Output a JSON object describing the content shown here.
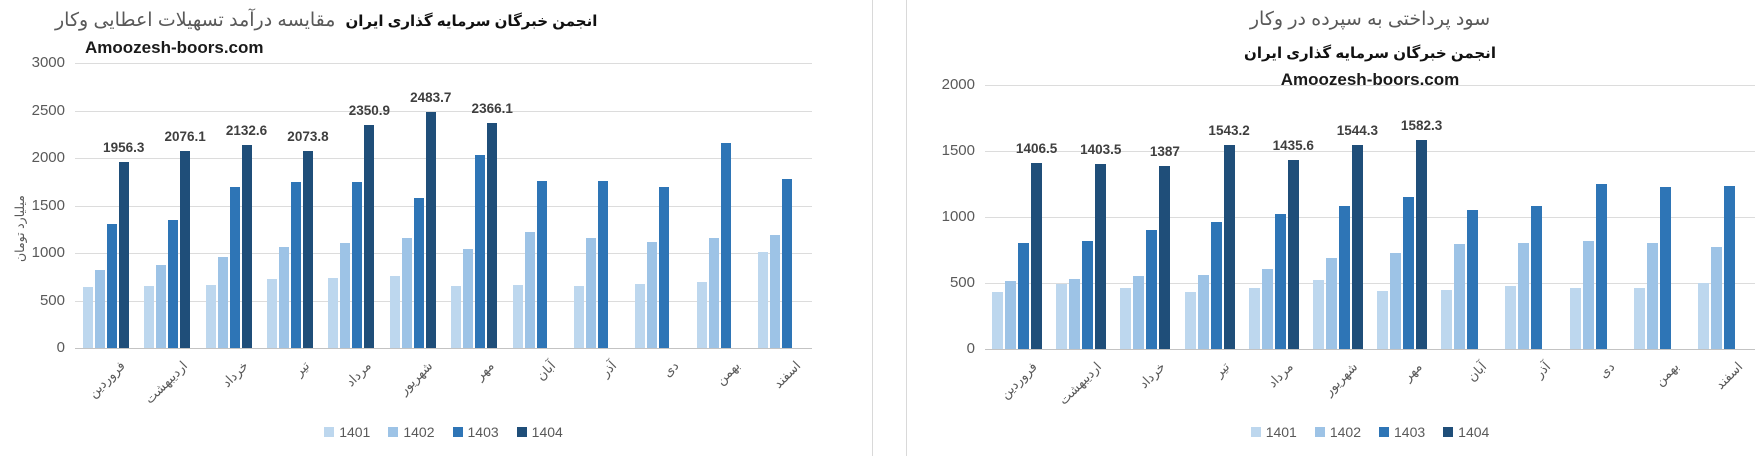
{
  "page": {
    "background": "#ffffff"
  },
  "chart_data": [
    {
      "type": "bar",
      "title_main": "مقایسه درآمد تسهیلات اعطایی وکار",
      "title_bold": "انجمن خبرگان سرمایه گذاری ایران",
      "watermark": "Amoozesh-boors.com",
      "ylabel": "میلیارد تومان",
      "xlabel": "",
      "categories": [
        "فروردین",
        "اردیبهشت",
        "خرداد",
        "تیر",
        "مرداد",
        "شهریور",
        "مهر",
        "آبان",
        "آذر",
        "دی",
        "بهمن",
        "اسفند"
      ],
      "series": [
        {
          "name": "1401",
          "color": "#bdd7ee",
          "values": [
            640,
            650,
            660,
            730,
            740,
            760,
            650,
            660,
            650,
            670,
            700,
            1010
          ]
        },
        {
          "name": "1402",
          "color": "#9dc3e6",
          "values": [
            825,
            870,
            960,
            1060,
            1110,
            1160,
            1040,
            1220,
            1160,
            1115,
            1160,
            1185
          ]
        },
        {
          "name": "1403",
          "color": "#2e75b6",
          "values": [
            1310,
            1350,
            1700,
            1750,
            1750,
            1580,
            2030,
            1760,
            1760,
            1700,
            2160,
            1780
          ]
        },
        {
          "name": "1404",
          "color": "#1f4e79",
          "values": [
            1956.3,
            2076.1,
            2132.6,
            2073.8,
            2350.9,
            2483.7,
            2366.1,
            null,
            null,
            null,
            null,
            null
          ],
          "data_labels": true
        }
      ],
      "ylim": [
        0,
        3000
      ],
      "ytick_step": 500,
      "grid": true,
      "legend_position": "bottom"
    },
    {
      "type": "bar",
      "title_main": "سود پرداختی به سپرده در وکار",
      "title_bold": "انجمن خبرگان سرمایه گذاری ایران",
      "watermark": "Amoozesh-boors.com",
      "ylabel": "",
      "xlabel": "",
      "categories": [
        "فروردین",
        "اردیبهشت",
        "خرداد",
        "تیر",
        "مرداد",
        "شهریور",
        "مهر",
        "آبان",
        "آذر",
        "دی",
        "بهمن",
        "اسفند"
      ],
      "series": [
        {
          "name": "1401",
          "color": "#bdd7ee",
          "values": [
            430,
            490,
            465,
            435,
            465,
            525,
            440,
            450,
            480,
            465,
            460,
            500
          ]
        },
        {
          "name": "1402",
          "color": "#9dc3e6",
          "values": [
            515,
            530,
            550,
            560,
            605,
            690,
            725,
            795,
            805,
            820,
            800,
            770
          ]
        },
        {
          "name": "1403",
          "color": "#2e75b6",
          "values": [
            800,
            820,
            900,
            960,
            1025,
            1085,
            1155,
            1055,
            1085,
            1250,
            1230,
            1235
          ]
        },
        {
          "name": "1404",
          "color": "#1f4e79",
          "values": [
            1406.5,
            1403.5,
            1387,
            1543.2,
            1435.6,
            1544.3,
            1582.3,
            null,
            null,
            null,
            null,
            null
          ],
          "data_labels": true
        }
      ],
      "ylim": [
        0,
        2000
      ],
      "ytick_step": 500,
      "grid": true,
      "legend_position": "bottom"
    }
  ]
}
